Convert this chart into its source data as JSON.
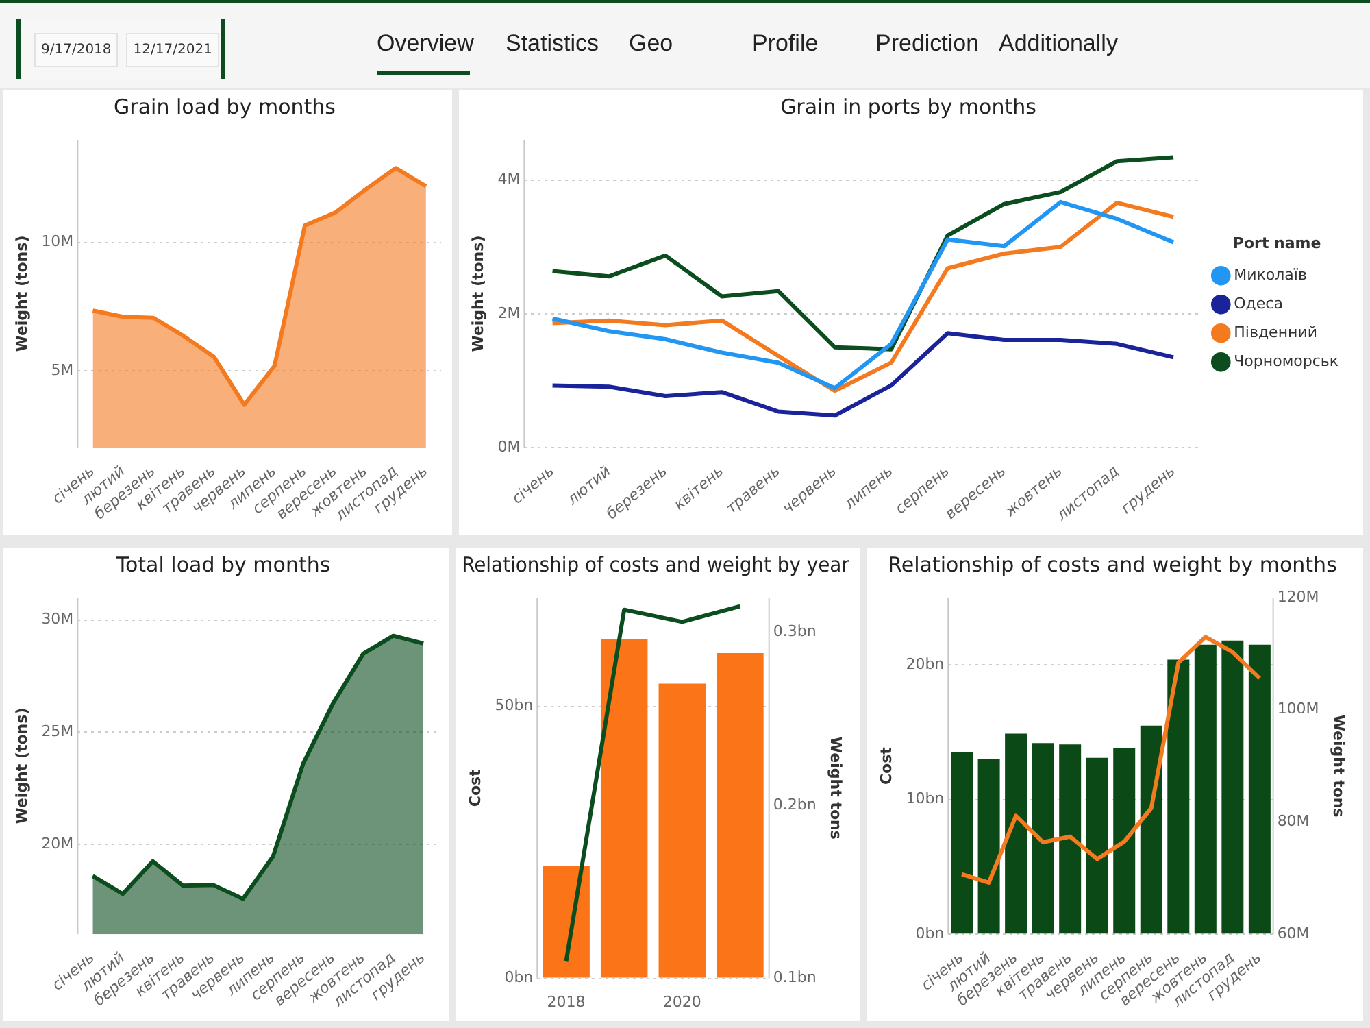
{
  "chart_data": [
    {
      "type": "other",
      "annotations": [
        "9/17/2018",
        "12/17/2021",
        "Overview",
        "Statistics",
        "Geo",
        "Profile",
        "Prediction",
        "Additionally"
      ]
    },
    {
      "type": "area",
      "title": "Grain load by months",
      "ylabel": "Weight (tons)",
      "categories": [
        "січень",
        "лютий",
        "березень",
        "квітень",
        "травень",
        "червень",
        "липень",
        "серпень",
        "вересень",
        "жовтень",
        "листопад",
        "грудень"
      ],
      "series": [
        {
          "color": "#f47a20",
          "values": [
            7340000,
            7100000,
            7060000,
            6350000,
            5540000,
            3670000,
            5190000,
            10660000,
            11160000,
            12060000,
            12900000,
            12190000
          ]
        }
      ],
      "ylim": [
        2000000,
        14000000
      ],
      "yticks": [
        {
          "value": 5000000,
          "label": "5M"
        },
        {
          "value": 10000000,
          "label": "10M"
        }
      ],
      "grid": "y"
    },
    {
      "type": "line",
      "title": "Grain in ports by months",
      "ylabel": "Weight (tons)",
      "legend_title": "Port name",
      "legend": "right",
      "categories": [
        "січень",
        "лютий",
        "березень",
        "квітень",
        "травень",
        "червень",
        "липень",
        "серпень",
        "вересень",
        "жовтень",
        "листопад",
        "грудень"
      ],
      "series": [
        {
          "name": "Миколаїв",
          "color": "#2196f3",
          "values": [
            1930000,
            1740000,
            1620000,
            1420000,
            1270000,
            890000,
            1550000,
            3110000,
            3010000,
            3670000,
            3420000,
            3070000
          ]
        },
        {
          "name": "Одеса",
          "color": "#1a239a",
          "values": [
            930000,
            910000,
            770000,
            830000,
            540000,
            480000,
            930000,
            1710000,
            1610000,
            1610000,
            1550000,
            1350000
          ]
        },
        {
          "name": "Південний",
          "color": "#f47a20",
          "values": [
            1860000,
            1900000,
            1830000,
            1900000,
            1370000,
            850000,
            1270000,
            2680000,
            2900000,
            3000000,
            3660000,
            3450000
          ]
        },
        {
          "name": "Чорноморськ",
          "color": "#0b4d1e",
          "values": [
            2640000,
            2560000,
            2870000,
            2260000,
            2340000,
            1500000,
            1470000,
            3170000,
            3640000,
            3820000,
            4280000,
            4340000
          ]
        }
      ],
      "ylim": [
        0,
        4600000
      ],
      "yticks": [
        {
          "value": 0,
          "label": "0M"
        },
        {
          "value": 2000000,
          "label": "2M"
        },
        {
          "value": 4000000,
          "label": "4M"
        }
      ],
      "grid": "y"
    },
    {
      "type": "area",
      "title": "Total load by months",
      "ylabel": "Weight (tons)",
      "categories": [
        "січень",
        "лютий",
        "березень",
        "квітень",
        "травень",
        "червень",
        "липень",
        "серпень",
        "вересень",
        "жовтень",
        "листопад",
        "грудень"
      ],
      "series": [
        {
          "color": "#0b4d1e",
          "values": [
            18600000,
            17800000,
            19250000,
            18170000,
            18200000,
            17580000,
            19470000,
            23600000,
            26300000,
            28500000,
            29300000,
            28960000
          ]
        }
      ],
      "ylim": [
        16000000,
        31000000
      ],
      "yticks": [
        {
          "value": 20000000,
          "label": "20M"
        },
        {
          "value": 25000000,
          "label": "25M"
        },
        {
          "value": 30000000,
          "label": "30M"
        }
      ],
      "grid": "y"
    },
    {
      "type": "bar",
      "title": "Relationship of costs and weight by year",
      "ylabel": "Cost",
      "y2label": "Weight tons",
      "categories": [
        "2018",
        null,
        "2020",
        null
      ],
      "series": [
        {
          "type": "bar",
          "color": "#fb7418",
          "values": [
            20700000000,
            62300000000,
            54200000000,
            59800000000
          ]
        },
        {
          "type": "line",
          "axis": "y2",
          "color": "#0b4d1e",
          "values": [
            110000000,
            313000000,
            306000000,
            315000000
          ]
        }
      ],
      "ylim": [
        0,
        70000000000
      ],
      "yticks": [
        {
          "value": 0,
          "label": "0bn"
        },
        {
          "value": 50000000000,
          "label": "50bn"
        }
      ],
      "y2lim": [
        100000000,
        320000000
      ],
      "y2ticks": [
        {
          "value": 100000000,
          "label": "0.1bn"
        },
        {
          "value": 200000000,
          "label": "0.2bn"
        },
        {
          "value": 300000000,
          "label": "0.3bn"
        }
      ],
      "grid": "y"
    },
    {
      "type": "bar",
      "title": "Relationship of costs and weight by months",
      "ylabel": "Cost",
      "y2label": "Weight tons",
      "categories": [
        "січень",
        "лютий",
        "березень",
        "квітень",
        "травень",
        "червень",
        "липень",
        "серпень",
        "вересень",
        "жовтень",
        "листопад",
        "грудень"
      ],
      "series": [
        {
          "type": "bar",
          "color": "#0b4a17",
          "values": [
            13500000000,
            13000000000,
            14900000000,
            14200000000,
            14100000000,
            13100000000,
            13800000000,
            15500000000,
            20400000000,
            21500000000,
            21800000000,
            21500000000
          ]
        },
        {
          "type": "line",
          "axis": "y2",
          "color": "#f47a20",
          "values": [
            70700000,
            69200000,
            81100000,
            76400000,
            77400000,
            73400000,
            76500000,
            82500000,
            108400000,
            113000000,
            110300000,
            105600000
          ]
        }
      ],
      "ylim": [
        0,
        25000000000
      ],
      "yticks": [
        {
          "value": 0,
          "label": "0bn"
        },
        {
          "value": 10000000000,
          "label": "10bn"
        },
        {
          "value": 20000000000,
          "label": "20bn"
        }
      ],
      "y2lim": [
        60000000,
        120000000
      ],
      "y2ticks": [
        {
          "value": 60000000,
          "label": "60M"
        },
        {
          "value": 80000000,
          "label": "80M"
        },
        {
          "value": 100000000,
          "label": "100M"
        },
        {
          "value": 120000000,
          "label": "120M"
        }
      ],
      "grid": "y"
    }
  ]
}
